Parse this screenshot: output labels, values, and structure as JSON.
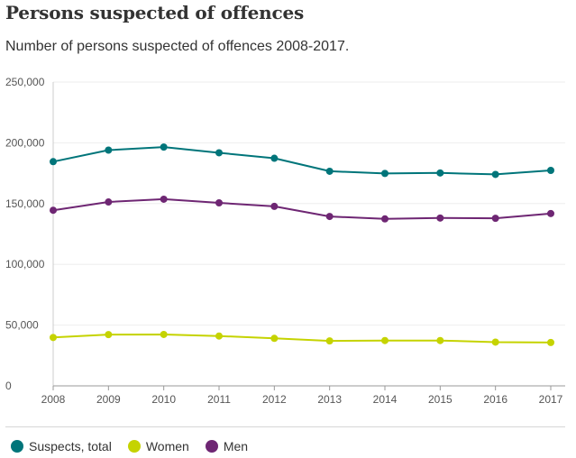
{
  "title": "Persons suspected of offences",
  "subtitle": "Number of persons suspected of offences 2008-2017.",
  "colors": {
    "total": "#00757a",
    "women": "#c5d300",
    "men": "#6e2673"
  },
  "chart_data": {
    "type": "line",
    "categories": [
      "2008",
      "2009",
      "2010",
      "2011",
      "2012",
      "2013",
      "2014",
      "2015",
      "2016",
      "2017"
    ],
    "ylim": [
      0,
      250000
    ],
    "yticks": [
      0,
      50000,
      100000,
      150000,
      200000,
      250000
    ],
    "ytick_labels": [
      "0",
      "50,000",
      "100,000",
      "150,000",
      "200,000",
      "250,000"
    ],
    "series": [
      {
        "name": "Suspects, total",
        "color_key": "total",
        "values": [
          184500,
          194000,
          196500,
          191800,
          187300,
          176600,
          174800,
          175200,
          174000,
          177300
        ]
      },
      {
        "name": "Men",
        "color_key": "men",
        "values": [
          144500,
          151300,
          153600,
          150600,
          147700,
          139400,
          137400,
          138100,
          137900,
          141800
        ]
      },
      {
        "name": "Women",
        "color_key": "women",
        "values": [
          39800,
          42200,
          42300,
          41000,
          39100,
          37000,
          37300,
          37300,
          36000,
          35700
        ]
      }
    ]
  },
  "legend": [
    {
      "label": "Suspects, total",
      "color_key": "total"
    },
    {
      "label": "Women",
      "color_key": "women"
    },
    {
      "label": "Men",
      "color_key": "men"
    }
  ]
}
